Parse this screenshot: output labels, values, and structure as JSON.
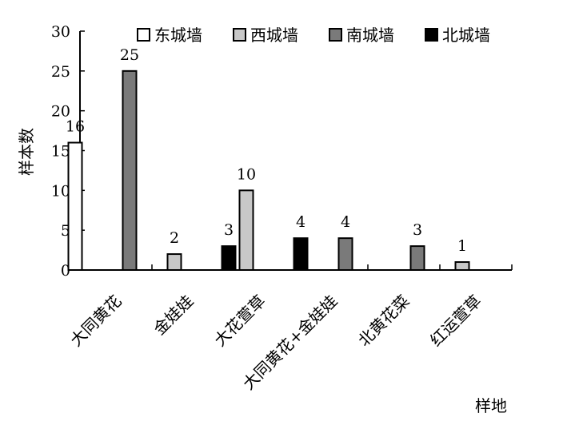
{
  "chart_data": {
    "type": "bar",
    "title": "",
    "xlabel": "样地",
    "ylabel": "样本数",
    "ylim": [
      0,
      30
    ],
    "yticks": [
      0,
      5,
      10,
      15,
      20,
      25,
      30
    ],
    "grid": false,
    "legend_position": "top",
    "categories": [
      "大同黄花",
      "金娃娃",
      "大花萱草",
      "大同黄花+金娃娃",
      "北黄花菜",
      "红运萱草"
    ],
    "series": [
      {
        "name": "东城墙",
        "color": "#ffffff",
        "values": [
          16,
          0,
          0,
          0,
          0,
          0
        ]
      },
      {
        "name": "西城墙",
        "color": "#c8c8c8",
        "values": [
          0,
          2,
          10,
          0,
          0,
          1
        ]
      },
      {
        "name": "南城墙",
        "color": "#7a7a7a",
        "values": [
          25,
          0,
          0,
          4,
          3,
          0
        ]
      },
      {
        "name": "北城墙",
        "color": "#000000",
        "values": [
          0,
          3,
          4,
          0,
          0,
          0
        ]
      }
    ],
    "data_labels": [
      {
        "category": "大同黄花",
        "series": "东城墙",
        "text": "16"
      },
      {
        "category": "大同黄花",
        "series": "南城墙",
        "text": "25"
      },
      {
        "category": "金娃娃",
        "series": "西城墙",
        "text": "2"
      },
      {
        "category": "金娃娃",
        "series": "北城墙",
        "text": "3"
      },
      {
        "category": "大花萱草",
        "series": "西城墙",
        "text": "10"
      },
      {
        "category": "大花萱草",
        "series": "北城墙",
        "text": "4"
      },
      {
        "category": "大同黄花+金娃娃",
        "series": "南城墙",
        "text": "4"
      },
      {
        "category": "北黄花菜",
        "series": "南城墙",
        "text": "3"
      },
      {
        "category": "红运萱草",
        "series": "西城墙",
        "text": "1"
      }
    ]
  }
}
